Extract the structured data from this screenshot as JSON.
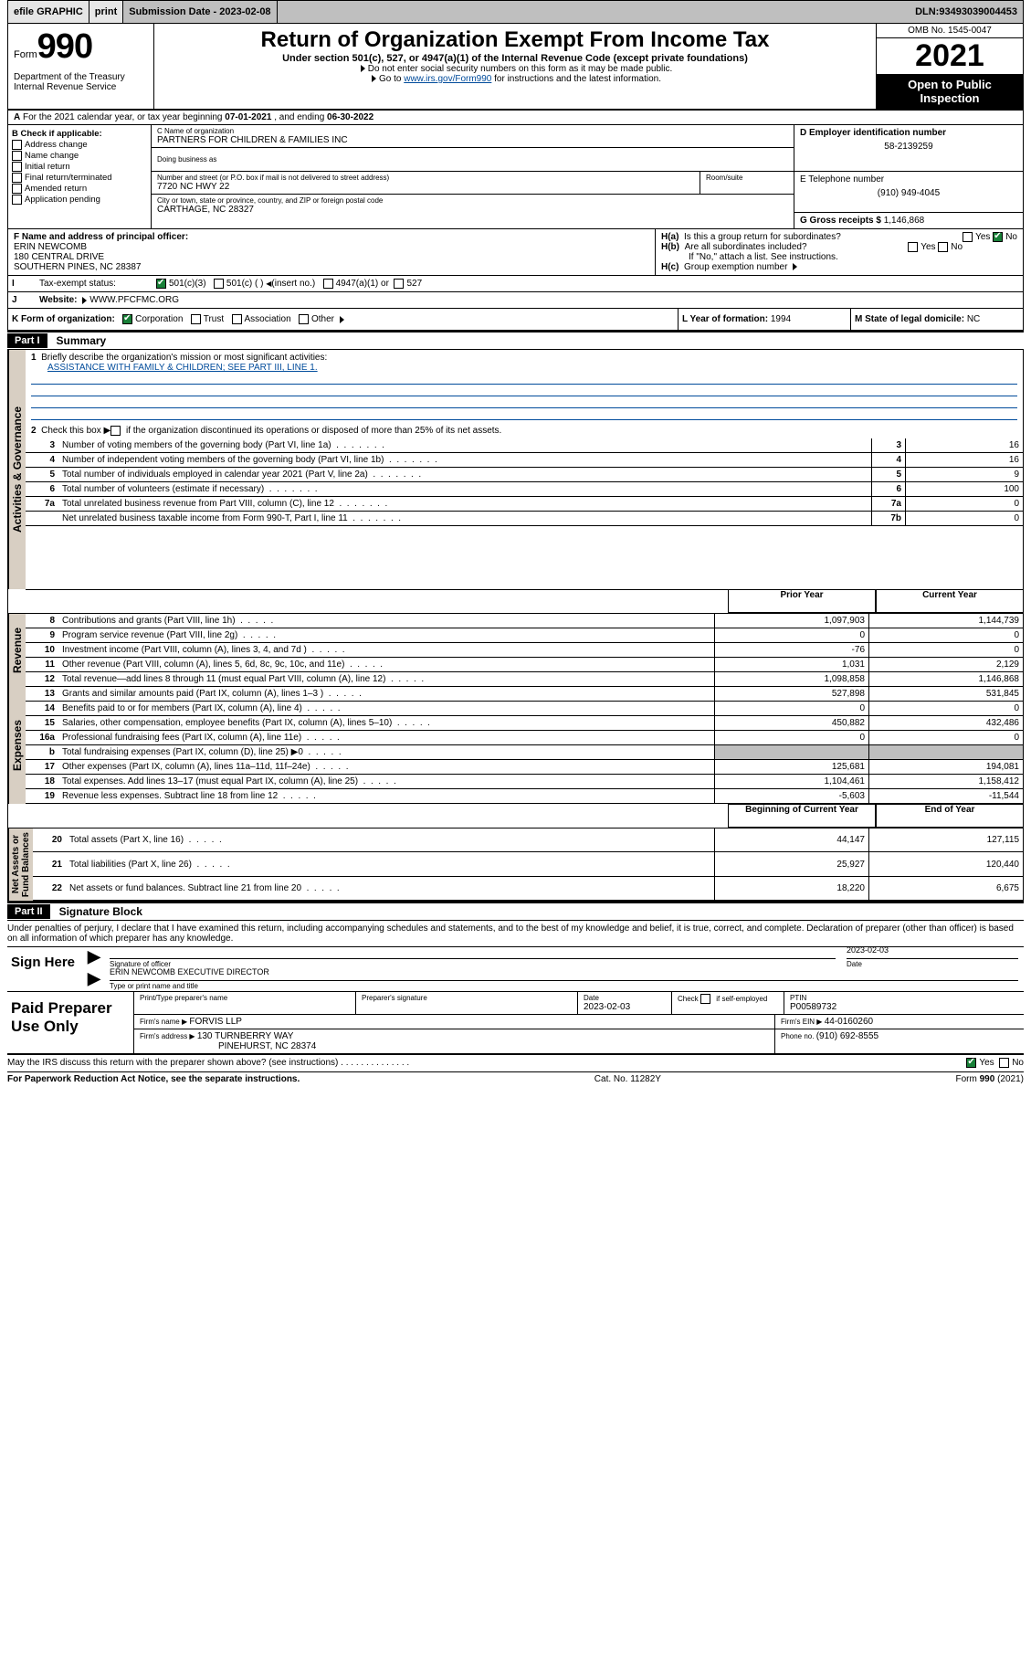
{
  "topbar": {
    "efile": "efile GRAPHIC",
    "print": "print",
    "subdate_label": "Submission Date - ",
    "subdate": "2023-02-08",
    "dln_label": "DLN: ",
    "dln": "93493039004453"
  },
  "header": {
    "form_word": "Form",
    "form_num": "990",
    "dept": "Department of the Treasury\nInternal Revenue Service",
    "title": "Return of Organization Exempt From Income Tax",
    "sub": "Under section 501(c), 527, or 4947(a)(1) of the Internal Revenue Code (except private foundations)",
    "note1": "Do not enter social security numbers on this form as it may be made public.",
    "note2_pre": "Go to ",
    "note2_link": "www.irs.gov/Form990",
    "note2_post": " for instructions and the latest information.",
    "omb": "OMB No. 1545-0047",
    "year": "2021",
    "open": "Open to Public Inspection"
  },
  "lineA": {
    "text_pre": "For the 2021 calendar year, or tax year beginning ",
    "begin": "07-01-2021",
    "mid": " , and ending ",
    "end": "06-30-2022"
  },
  "checkB": {
    "label": "B Check if applicable:",
    "items": [
      "Address change",
      "Name change",
      "Initial return",
      "Final return/terminated",
      "Amended return",
      "Application pending"
    ]
  },
  "blockC": {
    "label_name": "C Name of organization",
    "name": "PARTNERS FOR CHILDREN & FAMILIES INC",
    "dba_label": "Doing business as",
    "dba": "",
    "street_label": "Number and street (or P.O. box if mail is not delivered to street address)",
    "room_label": "Room/suite",
    "street": "7720 NC HWY 22",
    "city_label": "City or town, state or province, country, and ZIP or foreign postal code",
    "city": "CARTHAGE, NC  28327"
  },
  "blockD": {
    "label": "D Employer identification number",
    "ein": "58-2139259"
  },
  "blockE": {
    "label": "E Telephone number",
    "tel": "(910) 949-4045"
  },
  "blockG": {
    "label": "G Gross receipts $ ",
    "val": "1,146,868"
  },
  "blockF": {
    "label": "F Name and address of principal officer:",
    "name": "ERIN NEWCOMB",
    "addr1": "180 CENTRAL DRIVE",
    "addr2": "SOUTHERN PINES, NC  28387"
  },
  "blockH": {
    "a_label": "Is this a group return for subordinates?",
    "a_yes": "Yes",
    "a_no": "No",
    "b_label": "Are all subordinates included?",
    "b_yes": "Yes",
    "b_no": "No",
    "b_note": "If \"No,\" attach a list. See instructions.",
    "c_label": "Group exemption number "
  },
  "lineI": {
    "label": "Tax-exempt status:",
    "o1": "501(c)(3)",
    "o2": "501(c) (  )  ",
    "o2b": "(insert no.)",
    "o3": "4947(a)(1) or",
    "o4": "527"
  },
  "lineJ": {
    "label": "Website: ",
    "val": "WWW.PFCFMC.ORG"
  },
  "lineK": {
    "label": "K Form of organization:",
    "o1": "Corporation",
    "o2": "Trust",
    "o3": "Association",
    "o4": "Other "
  },
  "lineL": {
    "label": "L Year of formation: ",
    "val": "1994"
  },
  "lineM": {
    "label": "M State of legal domicile: ",
    "val": "NC"
  },
  "part1": {
    "tag": "Part I",
    "title": "Summary"
  },
  "summary": {
    "q1": "Briefly describe the organization's mission or most significant activities:",
    "q1v": "ASSISTANCE WITH FAMILY & CHILDREN; SEE PART III, LINE 1.",
    "q2": "Check this box ▶",
    "q2b": " if the organization discontinued its operations or disposed of more than 25% of its net assets.",
    "rows_ag": [
      {
        "n": "3",
        "t": "Number of voting members of the governing body (Part VI, line 1a)",
        "k": "3",
        "v": "16"
      },
      {
        "n": "4",
        "t": "Number of independent voting members of the governing body (Part VI, line 1b)",
        "k": "4",
        "v": "16"
      },
      {
        "n": "5",
        "t": "Total number of individuals employed in calendar year 2021 (Part V, line 2a)",
        "k": "5",
        "v": "9"
      },
      {
        "n": "6",
        "t": "Total number of volunteers (estimate if necessary)",
        "k": "6",
        "v": "100"
      },
      {
        "n": "7a",
        "t": "Total unrelated business revenue from Part VIII, column (C), line 12",
        "k": "7a",
        "v": "0"
      },
      {
        "n": "",
        "t": "Net unrelated business taxable income from Form 990-T, Part I, line 11",
        "k": "7b",
        "v": "0"
      }
    ],
    "col_prior": "Prior Year",
    "col_curr": "Current Year",
    "rows_rev": [
      {
        "n": "8",
        "t": "Contributions and grants (Part VIII, line 1h)",
        "p": "1,097,903",
        "c": "1,144,739"
      },
      {
        "n": "9",
        "t": "Program service revenue (Part VIII, line 2g)",
        "p": "0",
        "c": "0"
      },
      {
        "n": "10",
        "t": "Investment income (Part VIII, column (A), lines 3, 4, and 7d )",
        "p": "-76",
        "c": "0"
      },
      {
        "n": "11",
        "t": "Other revenue (Part VIII, column (A), lines 5, 6d, 8c, 9c, 10c, and 11e)",
        "p": "1,031",
        "c": "2,129"
      },
      {
        "n": "12",
        "t": "Total revenue—add lines 8 through 11 (must equal Part VIII, column (A), line 12)",
        "p": "1,098,858",
        "c": "1,146,868"
      }
    ],
    "rows_exp": [
      {
        "n": "13",
        "t": "Grants and similar amounts paid (Part IX, column (A), lines 1–3 )",
        "p": "527,898",
        "c": "531,845"
      },
      {
        "n": "14",
        "t": "Benefits paid to or for members (Part IX, column (A), line 4)",
        "p": "0",
        "c": "0"
      },
      {
        "n": "15",
        "t": "Salaries, other compensation, employee benefits (Part IX, column (A), lines 5–10)",
        "p": "450,882",
        "c": "432,486"
      },
      {
        "n": "16a",
        "t": "Professional fundraising fees (Part IX, column (A), line 11e)",
        "p": "0",
        "c": "0"
      },
      {
        "n": "b",
        "t": "Total fundraising expenses (Part IX, column (D), line 25) ▶0",
        "p": "",
        "c": "",
        "shade": true
      },
      {
        "n": "17",
        "t": "Other expenses (Part IX, column (A), lines 11a–11d, 11f–24e)",
        "p": "125,681",
        "c": "194,081"
      },
      {
        "n": "18",
        "t": "Total expenses. Add lines 13–17 (must equal Part IX, column (A), line 25)",
        "p": "1,104,461",
        "c": "1,158,412"
      },
      {
        "n": "19",
        "t": "Revenue less expenses. Subtract line 18 from line 12",
        "p": "-5,603",
        "c": "-11,544"
      }
    ],
    "col_begin": "Beginning of Current Year",
    "col_end": "End of Year",
    "rows_na": [
      {
        "n": "20",
        "t": "Total assets (Part X, line 16)",
        "p": "44,147",
        "c": "127,115"
      },
      {
        "n": "21",
        "t": "Total liabilities (Part X, line 26)",
        "p": "25,927",
        "c": "120,440"
      },
      {
        "n": "22",
        "t": "Net assets or fund balances. Subtract line 21 from line 20",
        "p": "18,220",
        "c": "6,675"
      }
    ]
  },
  "part2": {
    "tag": "Part II",
    "title": "Signature Block"
  },
  "penalty": "Under penalties of perjury, I declare that I have examined this return, including accompanying schedules and statements, and to the best of my knowledge and belief, it is true, correct, and complete. Declaration of preparer (other than officer) is based on all information of which preparer has any knowledge.",
  "sign": {
    "here": "Sign Here",
    "date": "2023-02-03",
    "sig_label": "Signature of officer",
    "date_label": "Date",
    "name": "ERIN NEWCOMB  EXECUTIVE DIRECTOR",
    "name_label": "Type or print name and title"
  },
  "prep": {
    "title": "Paid Preparer Use Only",
    "h1": "Print/Type preparer's name",
    "h2": "Preparer's signature",
    "h3": "Date",
    "h3v": "2023-02-03",
    "h4a": "Check",
    "h4b": "if self-employed",
    "h5": "PTIN",
    "h5v": "P00589732",
    "firm_label": "Firm's name   ▶ ",
    "firm": "FORVIS LLP",
    "ein_label": "Firm's EIN ▶ ",
    "ein": "44-0160260",
    "addr_label": "Firm's address ▶ ",
    "addr1": "130 TURNBERRY WAY",
    "addr2": "PINEHURST, NC  28374",
    "phone_label": "Phone no. ",
    "phone": "(910) 692-8555"
  },
  "may": {
    "q": "May the IRS discuss this return with the preparer shown above? (see instructions)",
    "yes": "Yes",
    "no": "No"
  },
  "footer": {
    "left": "For Paperwork Reduction Act Notice, see the separate instructions.",
    "mid": "Cat. No. 11282Y",
    "right_pre": "Form ",
    "right_b": "990",
    "right_post": " (2021)"
  }
}
